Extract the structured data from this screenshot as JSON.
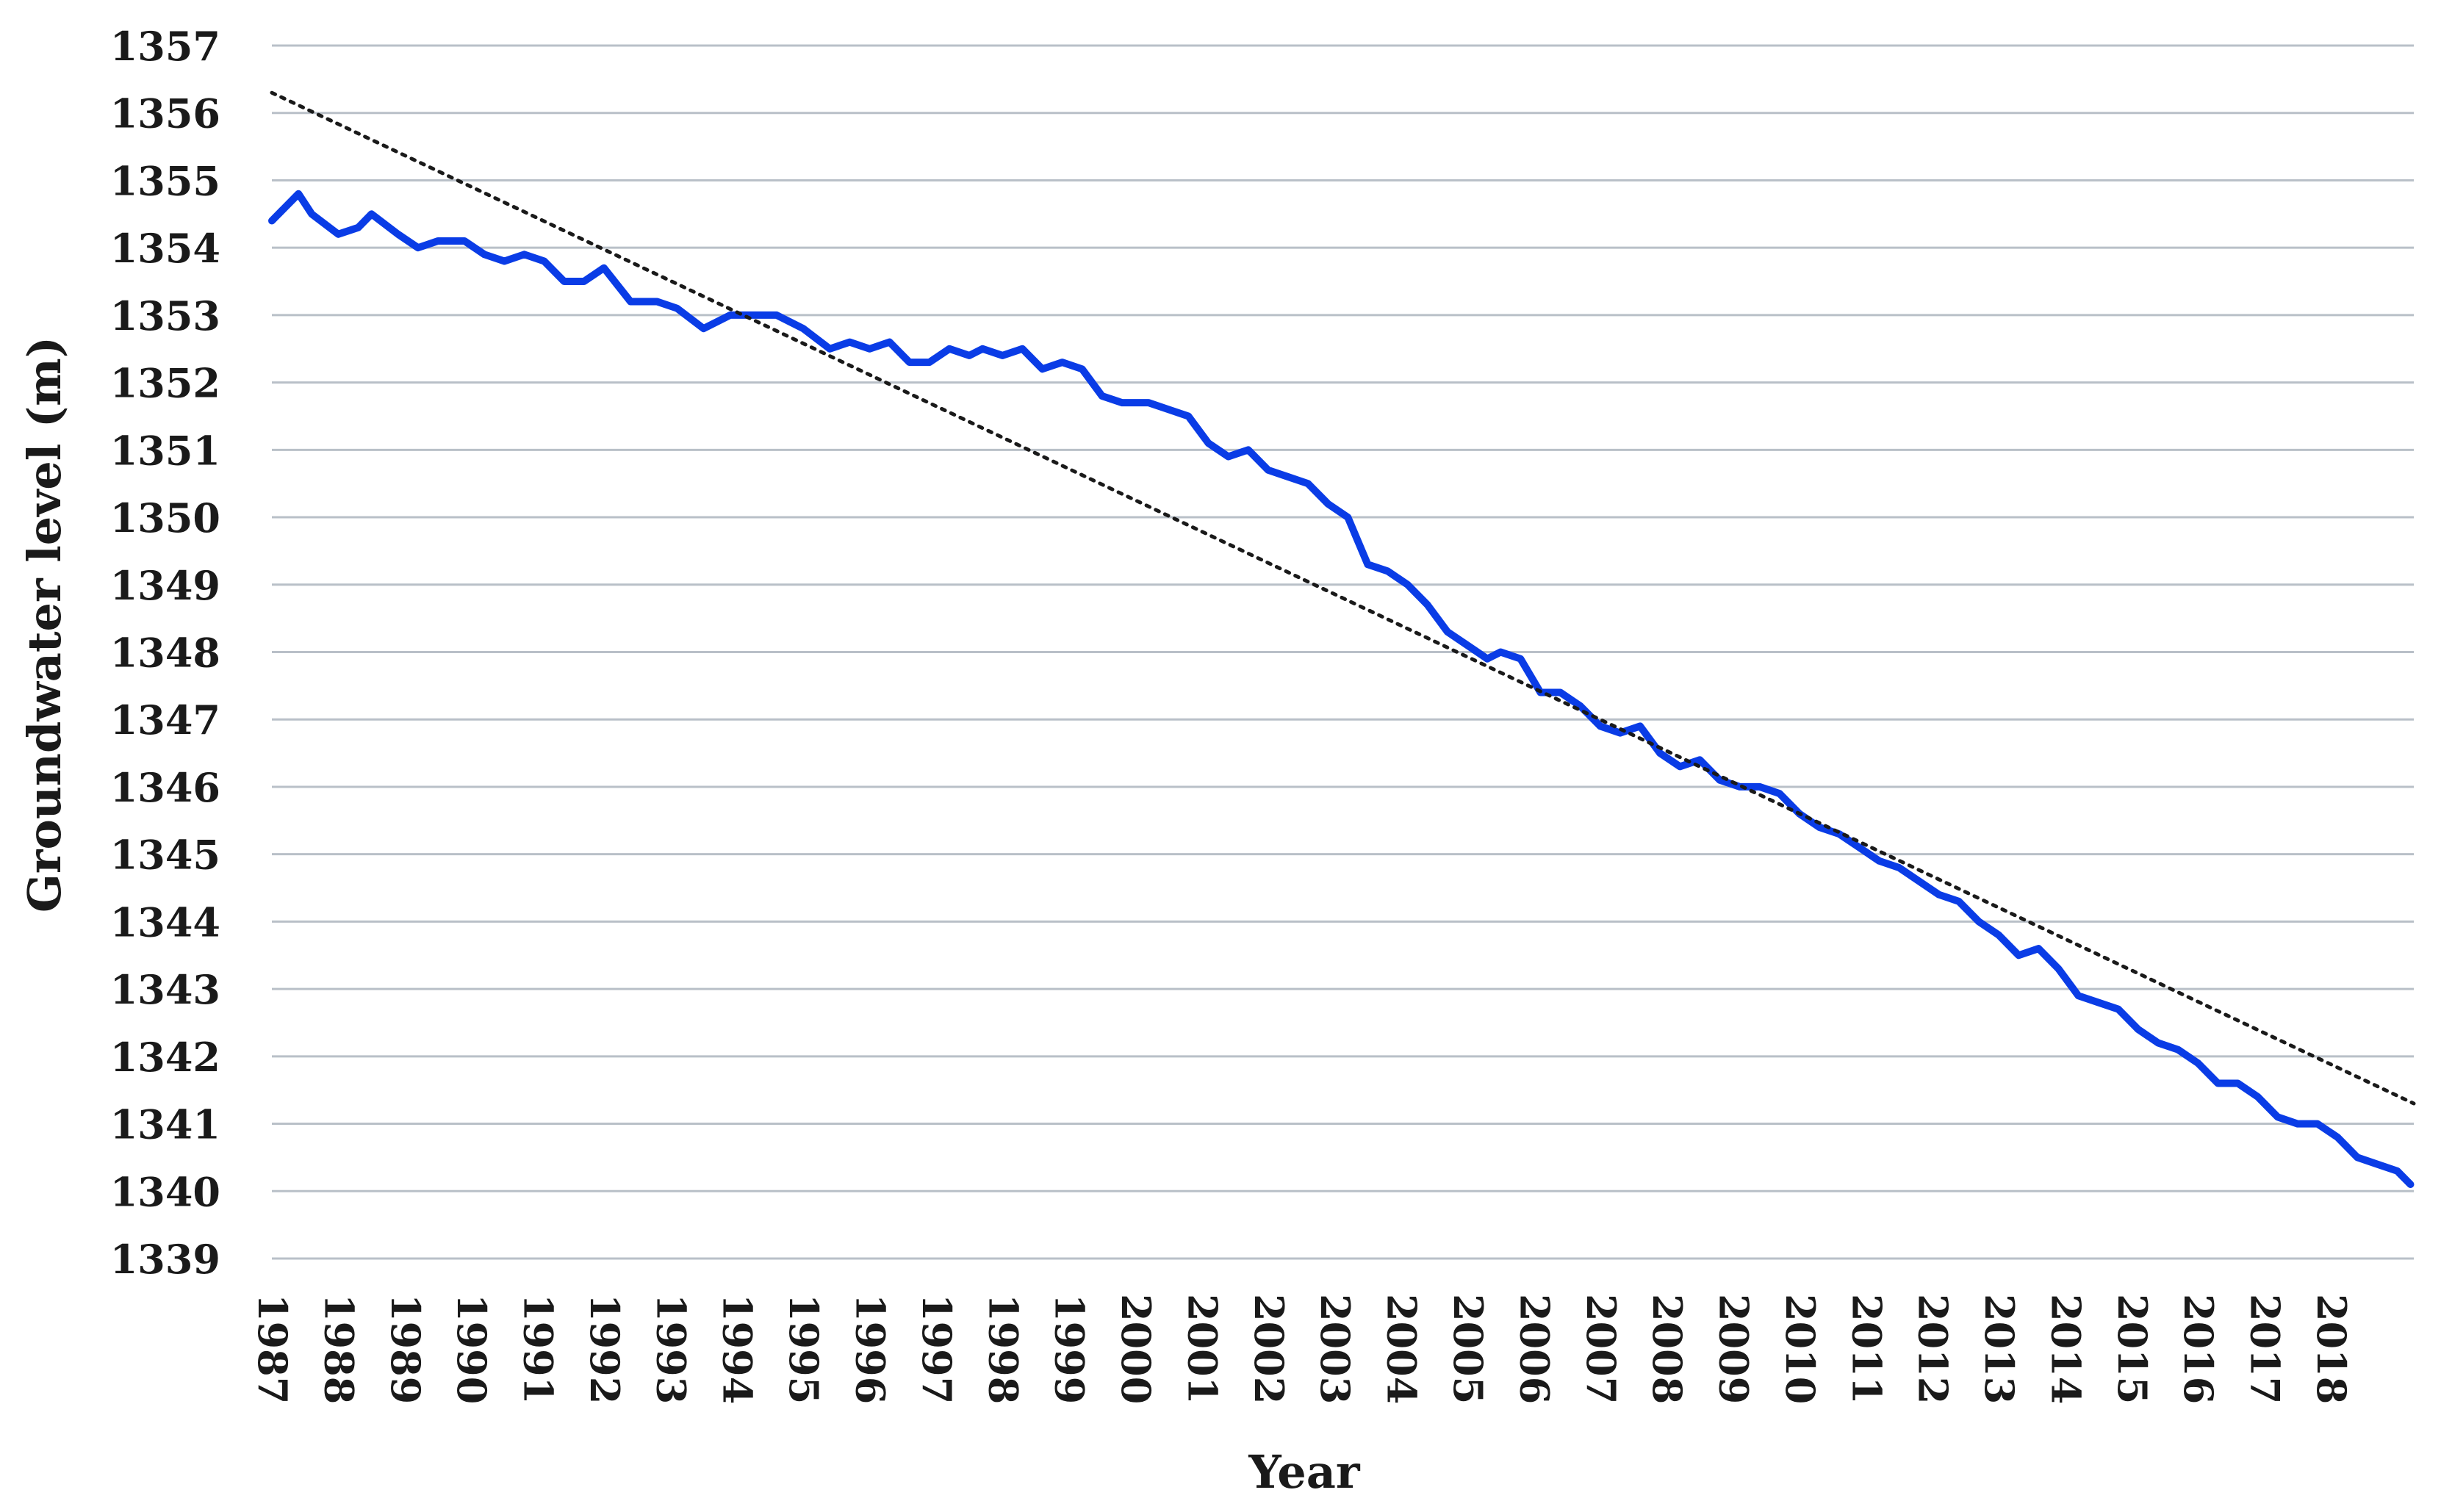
{
  "chart_data": {
    "type": "line",
    "title": "",
    "xlabel": "Year",
    "ylabel": "Groundwater level (m)",
    "ylim": [
      1339,
      1357
    ],
    "yticks": [
      1339,
      1340,
      1341,
      1342,
      1343,
      1344,
      1345,
      1346,
      1347,
      1348,
      1349,
      1350,
      1351,
      1352,
      1353,
      1354,
      1355,
      1356,
      1357
    ],
    "xlim": [
      1987,
      2019.25
    ],
    "xticks": [
      "1987",
      "1988",
      "1989",
      "1990",
      "1991",
      "1992",
      "1993",
      "1994",
      "1995",
      "1996",
      "1997",
      "1998",
      "1999",
      "2000",
      "2001",
      "2002",
      "2003",
      "2004",
      "2005",
      "2006",
      "2007",
      "2008",
      "2009",
      "2010",
      "2011",
      "2012",
      "2013",
      "2014",
      "2015",
      "2016",
      "2017",
      "2018"
    ],
    "grid": true,
    "legend": "none",
    "colors": {
      "series": "#0a3ce6",
      "trend": "#1a1a1a",
      "grid": "#b9c0c8"
    },
    "series": [
      {
        "style": "solid",
        "x": [
          1987.0,
          1987.2,
          1987.4,
          1987.6,
          1988.0,
          1988.3,
          1988.5,
          1988.9,
          1989.2,
          1989.5,
          1989.9,
          1990.2,
          1990.5,
          1990.8,
          1991.1,
          1991.4,
          1991.7,
          1992.0,
          1992.4,
          1992.8,
          1993.1,
          1993.5,
          1993.9,
          1994.3,
          1994.6,
          1995.0,
          1995.4,
          1995.7,
          1996.0,
          1996.3,
          1996.6,
          1996.9,
          1997.2,
          1997.5,
          1997.7,
          1998.0,
          1998.3,
          1998.6,
          1998.9,
          1999.2,
          1999.5,
          1999.8,
          2000.2,
          2000.5,
          2000.8,
          2001.1,
          2001.4,
          2001.7,
          2002.0,
          2002.3,
          2002.6,
          2002.9,
          2003.2,
          2003.5,
          2003.8,
          2004.1,
          2004.4,
          2004.7,
          2005.0,
          2005.3,
          2005.5,
          2005.8,
          2006.1,
          2006.4,
          2006.7,
          2007.0,
          2007.3,
          2007.6,
          2007.9,
          2008.2,
          2008.5,
          2008.8,
          2009.1,
          2009.4,
          2009.7,
          2010.0,
          2010.3,
          2010.6,
          2010.9,
          2011.2,
          2011.5,
          2011.8,
          2012.1,
          2012.4,
          2012.7,
          2013.0,
          2013.3,
          2013.6,
          2013.9,
          2014.2,
          2014.5,
          2014.8,
          2015.1,
          2015.4,
          2015.7,
          2016.0,
          2016.3,
          2016.6,
          2016.9,
          2017.2,
          2017.5,
          2017.8,
          2018.1,
          2018.4,
          2018.7,
          2019.0,
          2019.2
        ],
        "values": [
          1354.4,
          1354.6,
          1354.8,
          1354.5,
          1354.2,
          1354.3,
          1354.5,
          1354.2,
          1354.0,
          1354.1,
          1354.1,
          1353.9,
          1353.8,
          1353.9,
          1353.8,
          1353.5,
          1353.5,
          1353.7,
          1353.2,
          1353.2,
          1353.1,
          1352.8,
          1353.0,
          1353.0,
          1353.0,
          1352.8,
          1352.5,
          1352.6,
          1352.5,
          1352.6,
          1352.3,
          1352.3,
          1352.5,
          1352.4,
          1352.5,
          1352.4,
          1352.5,
          1352.2,
          1352.3,
          1352.2,
          1351.8,
          1351.7,
          1351.7,
          1351.6,
          1351.5,
          1351.1,
          1350.9,
          1351.0,
          1350.7,
          1350.6,
          1350.5,
          1350.2,
          1350.0,
          1349.3,
          1349.2,
          1349.0,
          1348.7,
          1348.3,
          1348.1,
          1347.9,
          1348.0,
          1347.9,
          1347.4,
          1347.4,
          1347.2,
          1346.9,
          1346.8,
          1346.9,
          1346.5,
          1346.3,
          1346.4,
          1346.1,
          1346.0,
          1346.0,
          1345.9,
          1345.6,
          1345.4,
          1345.3,
          1345.1,
          1344.9,
          1344.8,
          1344.6,
          1344.4,
          1344.3,
          1344.0,
          1343.8,
          1343.5,
          1343.6,
          1343.3,
          1342.9,
          1342.8,
          1342.7,
          1342.4,
          1342.2,
          1342.1,
          1341.9,
          1341.6,
          1341.6,
          1341.4,
          1341.1,
          1341.0,
          1341.0,
          1340.8,
          1340.5,
          1340.4,
          1340.3,
          1340.1
        ]
      },
      {
        "style": "dotted",
        "x": [
          1987.0,
          2019.25
        ],
        "values": [
          1356.3,
          1341.3
        ]
      }
    ]
  }
}
